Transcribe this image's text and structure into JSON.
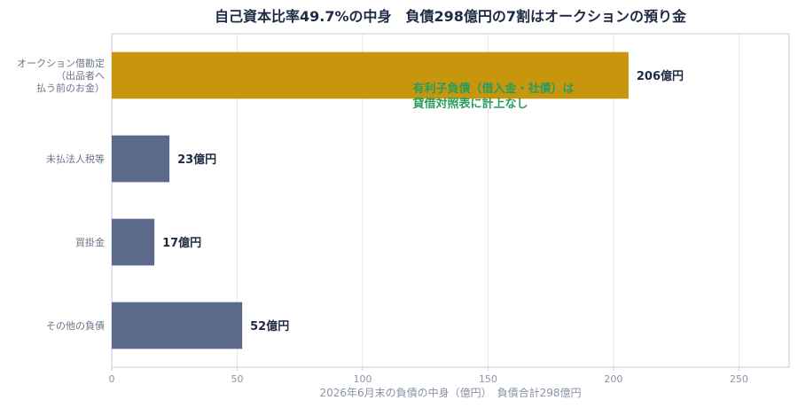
{
  "chart_data": {
    "type": "bar",
    "orientation": "horizontal",
    "title": "自己資本比率49.7%の中身　負債298億円の7割はオークションの預り金",
    "xlabel": "2026年6月末の負債の中身（億円）　負債合計298億円",
    "ylabel": "",
    "xlim": [
      0,
      270
    ],
    "x_ticks": [
      0,
      50,
      100,
      150,
      200,
      250
    ],
    "grid": "vertical",
    "categories": [
      [
        "オークション借勘定",
        "（出品者へ",
        "払う前のお金）"
      ],
      [
        "未払法人税等"
      ],
      [
        "買掛金"
      ],
      [
        "その他の負債"
      ]
    ],
    "values": [
      206,
      23,
      17,
      52
    ],
    "value_labels": [
      "206億円",
      "23億円",
      "17億円",
      "52億円"
    ],
    "bar_colors": [
      "#c8960c",
      "#5b6a8a",
      "#5b6a8a",
      "#5b6a8a"
    ],
    "annotation": {
      "lines": [
        "有利子負債（借入金・社債）は",
        "貸借対照表に計上なし"
      ],
      "x": 120,
      "category_index": 0,
      "color": "#2a9d5c"
    }
  }
}
